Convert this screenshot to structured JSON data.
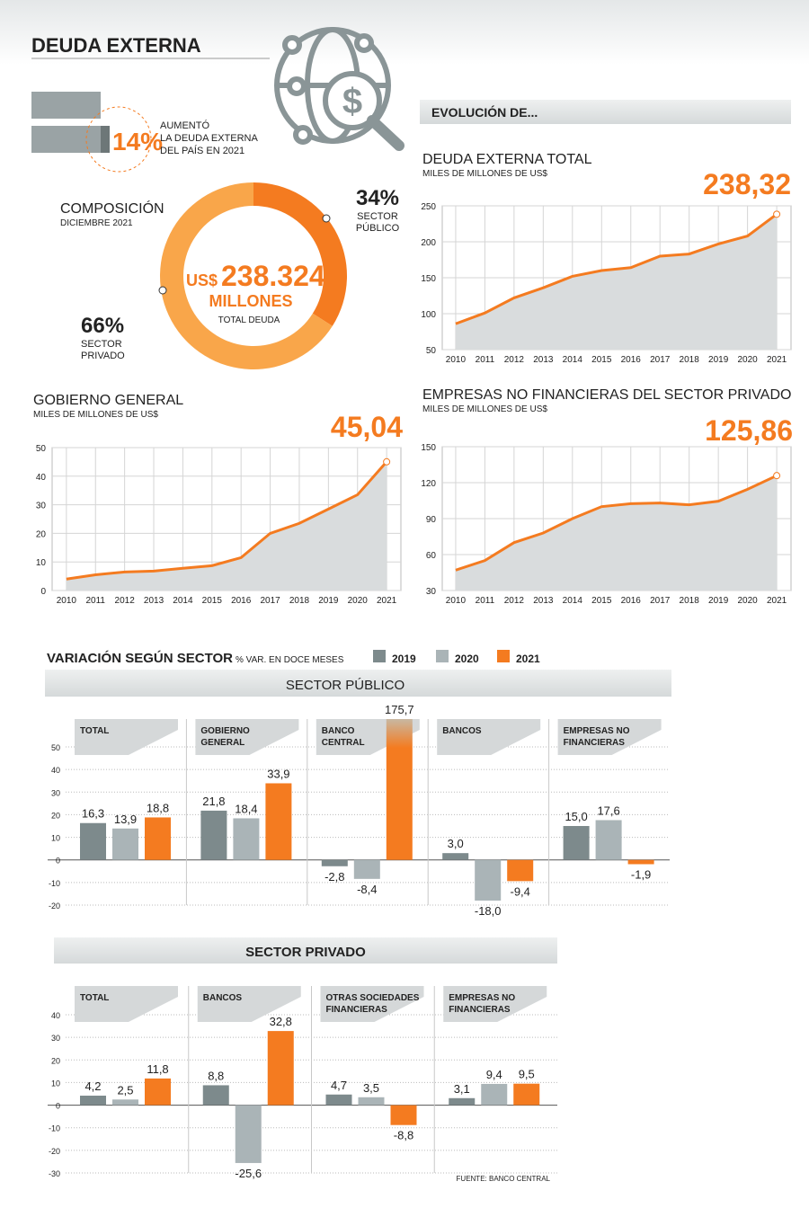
{
  "header": {
    "title": "DEUDA EXTERNA"
  },
  "increase": {
    "value_label": "14%",
    "note_lines": [
      "AUMENTÓ",
      "LA DEUDA EXTERNA",
      "DEL PAÍS EN 2021"
    ]
  },
  "evolution_banner": "EVOLUCIÓN DE...",
  "variation": {
    "title": "VARIACIÓN SEGÚN SECTOR",
    "subtitle": "% VAR. EN DOCE MESES",
    "public_banner": "SECTOR PÚBLICO",
    "private_banner": "SECTOR PRIVADO"
  },
  "source": "FUENTE: BANCO CENTRAL",
  "chart_data": [
    {
      "type": "donut",
      "title": "COMPOSICIÓN",
      "subtitle": "DICIEMBRE 2021",
      "categories": [
        "SECTOR PÚBLICO",
        "SECTOR PRIVADO"
      ],
      "values": [
        34,
        66
      ],
      "value_labels": [
        "34%",
        "66%"
      ],
      "colors": [
        "#f47b20",
        "#f9a64a"
      ],
      "center_prefix": "US$",
      "center_value": "238.324",
      "center_unit": "MILLONES",
      "center_note": "TOTAL DEUDA"
    },
    {
      "type": "line",
      "title": "DEUDA EXTERNA TOTAL",
      "subtitle": "MILES DE MILLONES DE US$",
      "x": [
        2010,
        2011,
        2012,
        2013,
        2014,
        2015,
        2016,
        2017,
        2018,
        2019,
        2020,
        2021
      ],
      "values": [
        86,
        101,
        122,
        136,
        152,
        160,
        164,
        180,
        183,
        197,
        208,
        238.32
      ],
      "value_labels": [
        null,
        null,
        null,
        null,
        null,
        null,
        null,
        null,
        null,
        null,
        null,
        "238,32"
      ],
      "color": "#f47b20",
      "area_color": "#d9dcdd",
      "grid": true,
      "xlim": [
        2009.54,
        2021.49
      ],
      "xticks": [
        2010,
        2011,
        2012,
        2013,
        2014,
        2015,
        2016,
        2017,
        2018,
        2019,
        2020,
        2021
      ],
      "ylim": [
        50,
        250
      ],
      "yticks": [
        50,
        100,
        150,
        200,
        250
      ]
    },
    {
      "type": "line",
      "title": "GOBIERNO GENERAL",
      "subtitle": "MILES DE MILLONES DE US$",
      "x": [
        2010,
        2011,
        2012,
        2013,
        2014,
        2015,
        2016,
        2017,
        2018,
        2019,
        2020,
        2021
      ],
      "values": [
        4,
        5.5,
        6.5,
        6.8,
        7.8,
        8.7,
        11.5,
        20,
        23.5,
        28.5,
        33.5,
        45.04
      ],
      "value_labels": [
        null,
        null,
        null,
        null,
        null,
        null,
        null,
        null,
        null,
        null,
        null,
        "45,04"
      ],
      "color": "#f47b20",
      "area_color": "#d9dcdd",
      "grid": true,
      "xlim": [
        2009.51,
        2021.49
      ],
      "xticks": [
        2010,
        2011,
        2012,
        2013,
        2014,
        2015,
        2016,
        2017,
        2018,
        2019,
        2020,
        2021
      ],
      "ylim": [
        0,
        50
      ],
      "yticks": [
        0,
        10,
        20,
        30,
        40,
        50
      ]
    },
    {
      "type": "line",
      "title": "EMPRESAS NO FINANCIERAS DEL SECTOR PRIVADO",
      "subtitle": "MILES DE MILLONES DE US$",
      "x": [
        2010,
        2011,
        2012,
        2013,
        2014,
        2015,
        2016,
        2017,
        2018,
        2019,
        2020,
        2021
      ],
      "values": [
        47,
        55,
        70,
        78,
        90,
        100,
        102.5,
        103,
        101.5,
        104.5,
        114.5,
        125.86
      ],
      "value_labels": [
        null,
        null,
        null,
        null,
        null,
        null,
        null,
        null,
        null,
        null,
        null,
        "125,86"
      ],
      "color": "#f47b20",
      "area_color": "#d9dcdd",
      "grid": true,
      "xlim": [
        2009.54,
        2021.49
      ],
      "xticks": [
        2010,
        2011,
        2012,
        2013,
        2014,
        2015,
        2016,
        2017,
        2018,
        2019,
        2020,
        2021
      ],
      "ylim": [
        30,
        150
      ],
      "yticks": [
        30,
        60,
        90,
        120,
        150
      ]
    },
    {
      "type": "bar",
      "categories": [
        "TOTAL",
        "GOBIERNO GENERAL",
        "BANCO CENTRAL",
        "BANCOS",
        "EMPRESAS NO FINANCIERAS"
      ],
      "series": [
        {
          "name": "2019",
          "color": "#7d8a8c",
          "values": [
            16.3,
            21.8,
            -2.8,
            3.0,
            15.0
          ],
          "value_labels": [
            "16,3",
            "21,8",
            "-2,8",
            "3,0",
            "15,0"
          ]
        },
        {
          "name": "2020",
          "color": "#aab4b7",
          "values": [
            13.9,
            18.4,
            -8.4,
            -18.0,
            17.6
          ],
          "value_labels": [
            "13,9",
            "18,4",
            "-8,4",
            "-18,0",
            "17,6"
          ]
        },
        {
          "name": "2021",
          "color": "#f47b20",
          "values": [
            18.8,
            33.9,
            175.7,
            -9.4,
            -1.9
          ],
          "value_labels": [
            "18,8",
            "33,9",
            "175,7",
            "-9,4",
            "-1,9"
          ]
        }
      ],
      "ylim": [
        -20,
        50
      ],
      "yticks": [
        -20,
        -10,
        0,
        10,
        20,
        30,
        40,
        50
      ],
      "grid": true
    },
    {
      "type": "bar",
      "categories": [
        "TOTAL",
        "BANCOS",
        "OTRAS SOCIEDADES FINANCIERAS",
        "EMPRESAS NO FINANCIERAS"
      ],
      "series": [
        {
          "color": "#7d8a8c",
          "values": [
            4.2,
            8.8,
            4.7,
            3.1
          ],
          "value_labels": [
            "4,2",
            "8,8",
            "4,7",
            "3,1"
          ]
        },
        {
          "color": "#aab4b7",
          "values": [
            2.5,
            -25.6,
            3.5,
            9.4
          ],
          "value_labels": [
            "2,5",
            "-25,6",
            "3,5",
            "9,4"
          ]
        },
        {
          "color": "#f47b20",
          "values": [
            11.8,
            32.8,
            -8.8,
            9.5
          ],
          "value_labels": [
            "11,8",
            "32,8",
            "-8,8",
            "9,5"
          ]
        }
      ],
      "ylim": [
        -30,
        40
      ],
      "yticks": [
        -30,
        -20,
        -10,
        0,
        10,
        20,
        30,
        40
      ],
      "grid": true
    }
  ]
}
